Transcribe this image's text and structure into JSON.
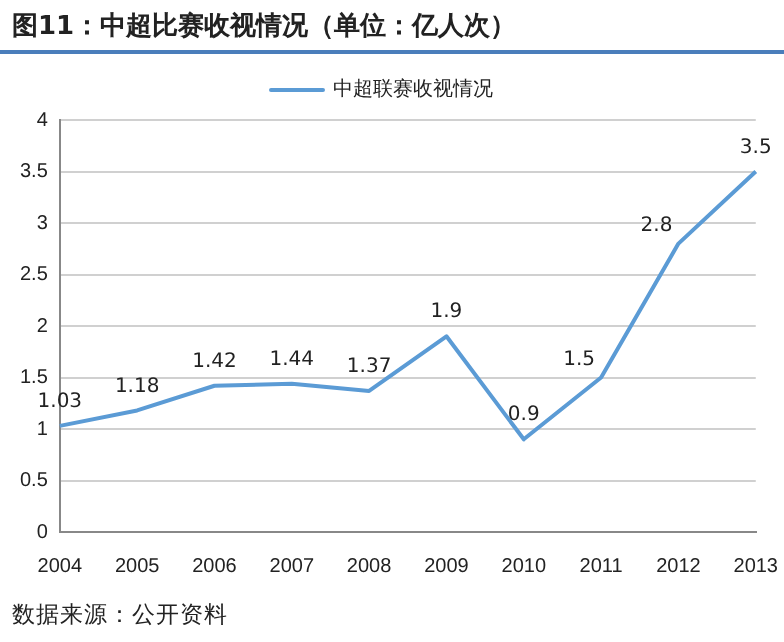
{
  "chart_data": {
    "type": "line",
    "title": "图11：中超比赛收视情况（单位：亿人次）",
    "categories": [
      "2004",
      "2005",
      "2006",
      "2007",
      "2008",
      "2009",
      "2010",
      "2011",
      "2012",
      "2013"
    ],
    "series": [
      {
        "name": "中超联赛收视情况",
        "color": "#5b9bd5",
        "values": [
          1.03,
          1.18,
          1.42,
          1.44,
          1.37,
          1.9,
          0.9,
          1.5,
          2.8,
          3.5
        ]
      }
    ],
    "ylim": [
      0,
      4
    ],
    "yticks": [
      0,
      0.5,
      1,
      1.5,
      2,
      2.5,
      3,
      3.5,
      4
    ],
    "grid": "y",
    "legend": "top",
    "marker": "none",
    "line_style": "solid",
    "data_labels": true,
    "annotations": [
      "数据来源：公开资料"
    ]
  }
}
